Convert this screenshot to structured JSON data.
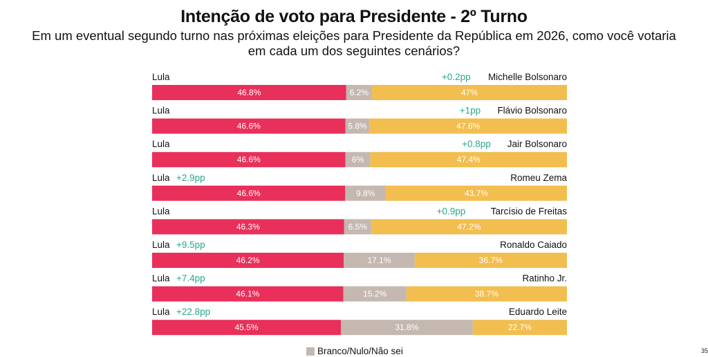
{
  "header": {
    "title": "Intenção de voto para Presidente - 2º Turno",
    "subtitle_line1": "Em um eventual segundo turno nas próximas eleições para Presidente da República em 2026, como você votaria",
    "subtitle_line2": "em cada um dos seguintes cenários?"
  },
  "colors": {
    "lula": "#e8305a",
    "branco": "#c4b8b1",
    "opponent": "#f2be4f",
    "delta": "#2aa78c"
  },
  "chart_data": {
    "type": "bar",
    "stacked": true,
    "orientation": "horizontal",
    "rows": [
      {
        "left_label": "Lula",
        "right_label": "Michelle Bolsonaro",
        "lead_side": "right",
        "lead": "+0.2pp",
        "lula": 46.8,
        "branco": 6.2,
        "opponent": 47,
        "lula_label": "46.8%",
        "branco_label": "6.2%",
        "opponent_label": "47%"
      },
      {
        "left_label": "Lula",
        "right_label": "Flávio Bolsonaro",
        "lead_side": "right",
        "lead": "+1pp",
        "lula": 46.6,
        "branco": 5.8,
        "opponent": 47.6,
        "lula_label": "46.6%",
        "branco_label": "5.8%",
        "opponent_label": "47.6%"
      },
      {
        "left_label": "Lula",
        "right_label": "Jair Bolsonaro",
        "lead_side": "right",
        "lead": "+0.8pp",
        "lula": 46.6,
        "branco": 6,
        "opponent": 47.4,
        "lula_label": "46.6%",
        "branco_label": "6%",
        "opponent_label": "47.4%"
      },
      {
        "left_label": "Lula",
        "right_label": "Romeu Zema",
        "lead_side": "left",
        "lead": "+2.9pp",
        "lula": 46.6,
        "branco": 9.8,
        "opponent": 43.7,
        "lula_label": "46.6%",
        "branco_label": "9.8%",
        "opponent_label": "43.7%"
      },
      {
        "left_label": "Lula",
        "right_label": "Tarcísio de Freitas",
        "lead_side": "right",
        "lead": "+0.9pp",
        "lula": 46.3,
        "branco": 6.5,
        "opponent": 47.2,
        "lula_label": "46.3%",
        "branco_label": "6.5%",
        "opponent_label": "47.2%"
      },
      {
        "left_label": "Lula",
        "right_label": "Ronaldo Caiado",
        "lead_side": "left",
        "lead": "+9.5pp",
        "lula": 46.2,
        "branco": 17.1,
        "opponent": 36.7,
        "lula_label": "46.2%",
        "branco_label": "17.1%",
        "opponent_label": "36.7%"
      },
      {
        "left_label": "Lula",
        "right_label": "Ratinho Jr.",
        "lead_side": "left",
        "lead": "+7.4pp",
        "lula": 46.1,
        "branco": 15.2,
        "opponent": 38.7,
        "lula_label": "46.1%",
        "branco_label": "15.2%",
        "opponent_label": "38.7%"
      },
      {
        "left_label": "Lula",
        "right_label": "Eduardo Leite",
        "lead_side": "left",
        "lead": "+22.8pp",
        "lula": 45.5,
        "branco": 31.8,
        "opponent": 22.7,
        "lula_label": "45.5%",
        "branco_label": "31.8%",
        "opponent_label": "22.7%"
      }
    ],
    "legend": [
      {
        "label": "Branco/Nulo/Não sei"
      }
    ]
  },
  "page_number": "35"
}
